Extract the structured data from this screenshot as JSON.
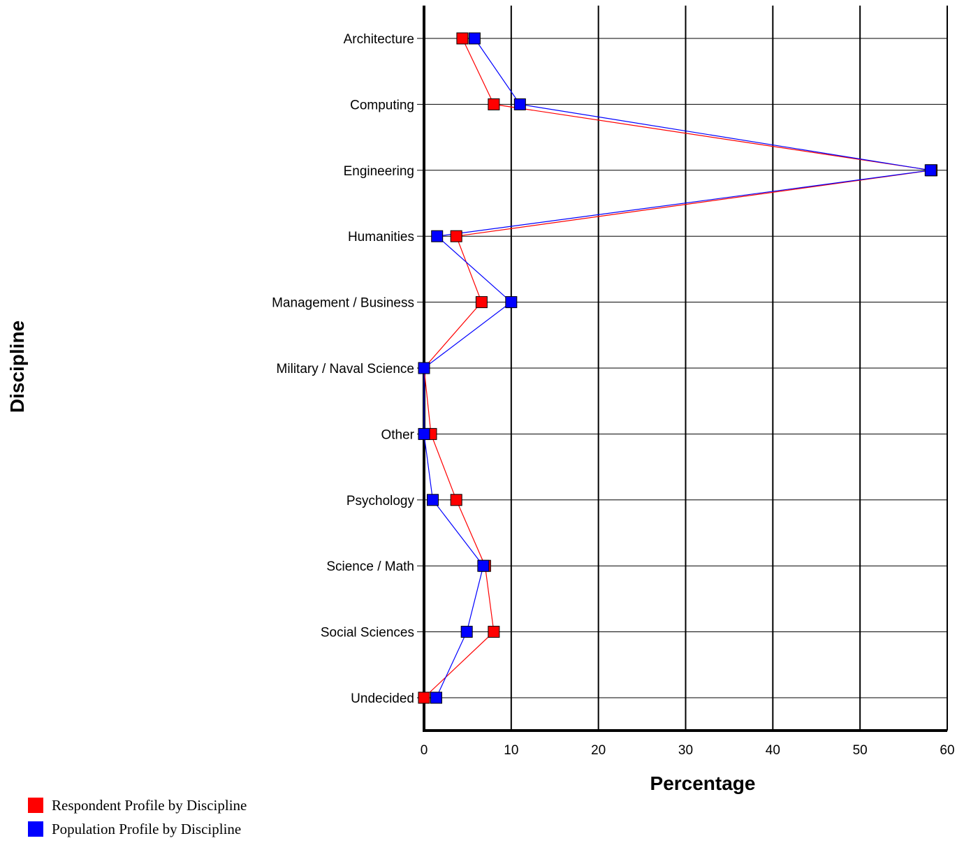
{
  "chart_data": {
    "type": "line",
    "orientation": "horizontal",
    "xlabel": "Percentage",
    "ylabel": "Discipline",
    "xlim": [
      0,
      60
    ],
    "xticks": [
      "0",
      "10",
      "20",
      "30",
      "40",
      "50",
      "60"
    ],
    "categories": [
      "Architecture",
      "Computing",
      "Engineering",
      "Humanities",
      "Management / Business",
      "Military / Naval Science",
      "Other",
      "Psychology",
      "Science / Math",
      "Social Sciences",
      "Undecided"
    ],
    "series": [
      {
        "name": "Respondent Profile by Discipline",
        "color": "#ff0000",
        "values": [
          4.4,
          8.0,
          58.2,
          3.7,
          6.6,
          0.0,
          0.8,
          3.7,
          7.0,
          8.0,
          0.0
        ]
      },
      {
        "name": "Population Profile by Discipline",
        "color": "#0000ff",
        "values": [
          5.8,
          11.0,
          58.1,
          1.5,
          10.0,
          0.0,
          0.0,
          1.0,
          6.8,
          4.9,
          1.4
        ]
      }
    ],
    "grid": true,
    "legend_position": "bottom-left"
  }
}
